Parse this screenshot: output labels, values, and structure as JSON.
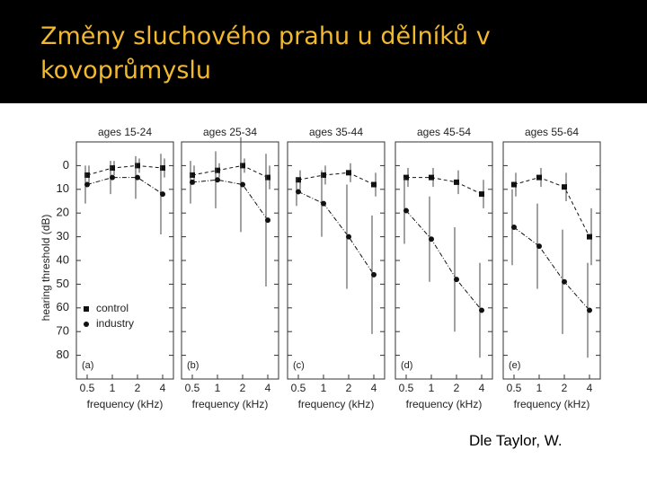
{
  "slide_title": "Změny sluchového prahu u dělníků v kovoprůmyslu",
  "caption": "Dle Taylor, W.",
  "chart_data": [
    {
      "type": "line",
      "title": "ages 15-24",
      "panel": "(a)",
      "xlabel": "frequency (kHz)",
      "ylabel": "hearing threshold (dB)",
      "categories": [
        "0.5",
        "1",
        "2",
        "4"
      ],
      "ylim": [
        -10,
        90
      ],
      "inverted": true,
      "yticks": [
        0,
        10,
        20,
        30,
        40,
        50,
        60,
        70,
        80
      ],
      "show_ytick_labels": true,
      "legend": true,
      "series": [
        {
          "name": "control",
          "color": "#111",
          "marker": "square",
          "values": [
            4,
            1,
            0,
            1
          ],
          "errors": [
            4,
            3,
            3,
            4
          ]
        },
        {
          "name": "industry",
          "color": "#111",
          "marker": "circle",
          "values": [
            8,
            5,
            5,
            12
          ],
          "errors": [
            8,
            7,
            9,
            17
          ]
        }
      ]
    },
    {
      "type": "line",
      "title": "ages 25-34",
      "panel": "(b)",
      "xlabel": "frequency (kHz)",
      "categories": [
        "0.5",
        "1",
        "2",
        "4"
      ],
      "ylim": [
        -10,
        90
      ],
      "inverted": true,
      "yticks": [
        0,
        10,
        20,
        30,
        40,
        50,
        60,
        70,
        80
      ],
      "show_ytick_labels": false,
      "legend": false,
      "series": [
        {
          "name": "control",
          "color": "#111",
          "marker": "square",
          "values": [
            4,
            2,
            0,
            5
          ],
          "errors": [
            4,
            3,
            3,
            5
          ]
        },
        {
          "name": "industry",
          "color": "#111",
          "marker": "circle",
          "values": [
            7,
            6,
            8,
            23
          ],
          "errors": [
            9,
            12,
            20,
            28
          ]
        }
      ]
    },
    {
      "type": "line",
      "title": "ages 35-44",
      "panel": "(c)",
      "xlabel": "frequency (kHz)",
      "categories": [
        "0.5",
        "1",
        "2",
        "4"
      ],
      "ylim": [
        -10,
        90
      ],
      "inverted": true,
      "yticks": [
        0,
        10,
        20,
        30,
        40,
        50,
        60,
        70,
        80
      ],
      "show_ytick_labels": false,
      "legend": false,
      "series": [
        {
          "name": "control",
          "color": "#111",
          "marker": "square",
          "values": [
            6,
            4,
            3,
            8
          ],
          "errors": [
            4,
            4,
            4,
            5
          ]
        },
        {
          "name": "industry",
          "color": "#111",
          "marker": "circle",
          "values": [
            11,
            16,
            30,
            46
          ],
          "errors": [
            6,
            14,
            22,
            25
          ]
        }
      ]
    },
    {
      "type": "line",
      "title": "ages 45-54",
      "panel": "(d)",
      "xlabel": "frequency (kHz)",
      "categories": [
        "0.5",
        "1",
        "2",
        "4"
      ],
      "ylim": [
        -10,
        90
      ],
      "inverted": true,
      "yticks": [
        0,
        10,
        20,
        30,
        40,
        50,
        60,
        70,
        80
      ],
      "show_ytick_labels": false,
      "legend": false,
      "series": [
        {
          "name": "control",
          "color": "#111",
          "marker": "square",
          "values": [
            5,
            5,
            7,
            12
          ],
          "errors": [
            4,
            4,
            5,
            6
          ]
        },
        {
          "name": "industry",
          "color": "#111",
          "marker": "circle",
          "values": [
            19,
            31,
            48,
            61
          ],
          "errors": [
            14,
            18,
            22,
            20
          ]
        }
      ]
    },
    {
      "type": "line",
      "title": "ages 55-64",
      "panel": "(e)",
      "xlabel": "frequency (kHz)",
      "categories": [
        "0.5",
        "1",
        "2",
        "4"
      ],
      "ylim": [
        -10,
        90
      ],
      "inverted": true,
      "yticks": [
        0,
        10,
        20,
        30,
        40,
        50,
        60,
        70,
        80
      ],
      "show_ytick_labels": false,
      "legend": false,
      "series": [
        {
          "name": "control",
          "color": "#111",
          "marker": "square",
          "values": [
            8,
            5,
            9,
            30
          ],
          "errors": [
            5,
            4,
            6,
            12
          ]
        },
        {
          "name": "industry",
          "color": "#111",
          "marker": "circle",
          "values": [
            26,
            34,
            49,
            61
          ],
          "errors": [
            16,
            18,
            22,
            20
          ]
        }
      ]
    }
  ]
}
